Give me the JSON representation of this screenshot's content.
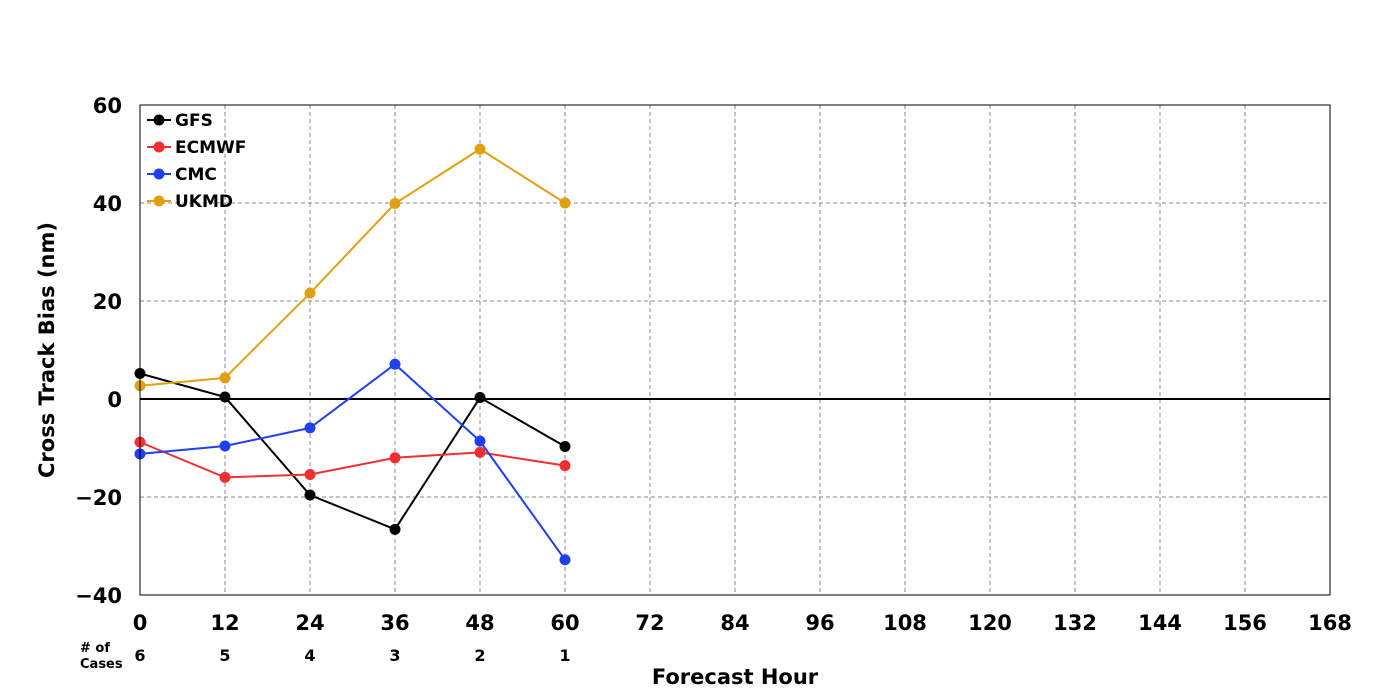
{
  "chart_data": {
    "type": "line",
    "xlabel": "Forecast Hour",
    "ylabel": "Cross Track Bias (nm)",
    "xlim": [
      0,
      168
    ],
    "ylim": [
      -40,
      60
    ],
    "x_ticks": [
      0,
      12,
      24,
      36,
      48,
      60,
      72,
      84,
      96,
      108,
      120,
      132,
      144,
      156,
      168
    ],
    "y_ticks": [
      -40,
      -20,
      0,
      20,
      40,
      60
    ],
    "y_tick_labels": [
      "−40",
      "−20",
      "0",
      "20",
      "40",
      "60"
    ],
    "grid": true,
    "legend_position": "top-left",
    "x": [
      0,
      12,
      24,
      36,
      48,
      60
    ],
    "series": [
      {
        "name": "GFS",
        "color": "#000000",
        "values": [
          5.2,
          0.4,
          -19.6,
          -26.6,
          0.3,
          -9.7
        ]
      },
      {
        "name": "ECMWF",
        "color": "#f03030",
        "values": [
          -8.8,
          -16.0,
          -15.4,
          -12.0,
          -10.9,
          -13.6
        ]
      },
      {
        "name": "CMC",
        "color": "#2040f0",
        "values": [
          -11.2,
          -9.6,
          -5.9,
          7.1,
          -8.6,
          -32.8
        ]
      },
      {
        "name": "UKMD",
        "color": "#e0a010",
        "values": [
          2.7,
          4.3,
          21.6,
          39.9,
          51.0,
          40.0
        ]
      }
    ],
    "cases_label": [
      "# of",
      "Cases"
    ],
    "cases": [
      6,
      5,
      4,
      3,
      2,
      1
    ]
  }
}
